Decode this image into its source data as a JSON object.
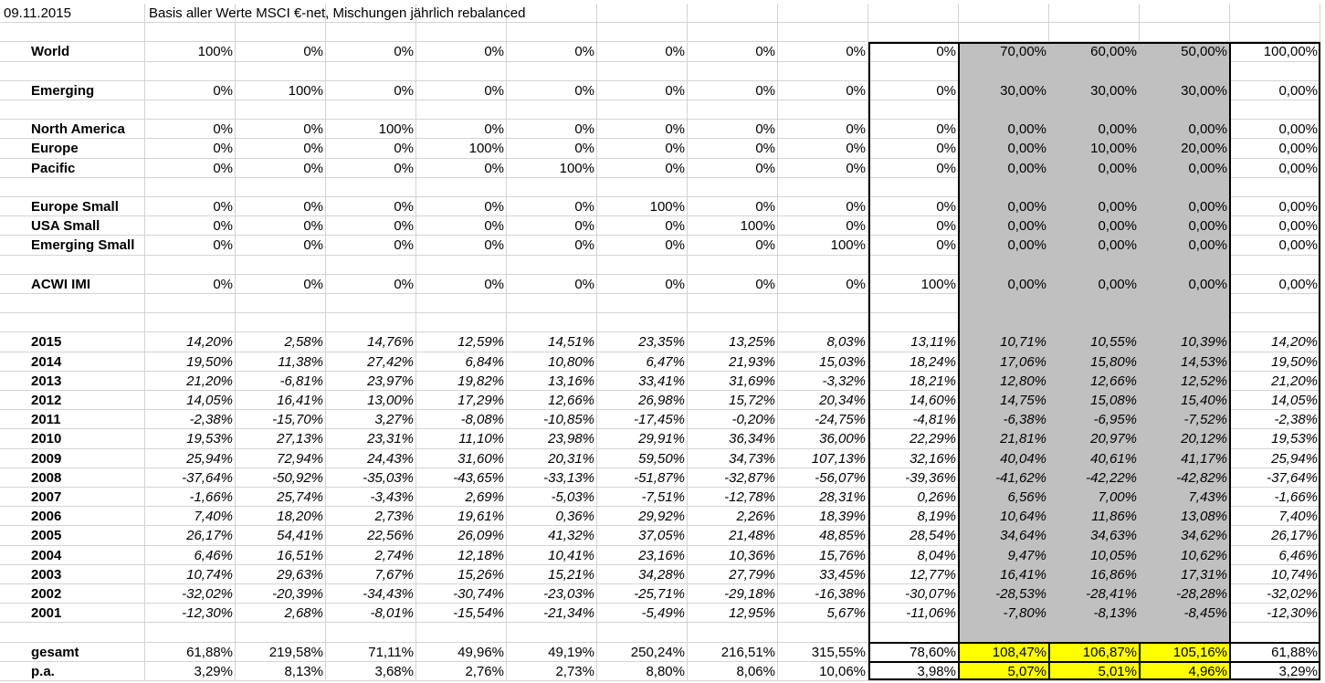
{
  "header": {
    "date": "09.11.2015",
    "note": "Basis aller Werte MSCI €-net, Mischungen jährlich rebalanced"
  },
  "groups": [
    [
      {
        "label": "World",
        "values": [
          "100%",
          "0%",
          "0%",
          "0%",
          "0%",
          "0%",
          "0%",
          "0%",
          "0%",
          "70,00%",
          "60,00%",
          "50,00%",
          "100,00%"
        ]
      }
    ],
    [
      {
        "label": "Emerging",
        "values": [
          "0%",
          "100%",
          "0%",
          "0%",
          "0%",
          "0%",
          "0%",
          "0%",
          "0%",
          "30,00%",
          "30,00%",
          "30,00%",
          "0,00%"
        ]
      }
    ],
    [
      {
        "label": "North America",
        "values": [
          "0%",
          "0%",
          "100%",
          "0%",
          "0%",
          "0%",
          "0%",
          "0%",
          "0%",
          "0,00%",
          "0,00%",
          "0,00%",
          "0,00%"
        ]
      },
      {
        "label": "Europe",
        "values": [
          "0%",
          "0%",
          "0%",
          "100%",
          "0%",
          "0%",
          "0%",
          "0%",
          "0%",
          "0,00%",
          "10,00%",
          "20,00%",
          "0,00%"
        ]
      },
      {
        "label": "Pacific",
        "values": [
          "0%",
          "0%",
          "0%",
          "0%",
          "100%",
          "0%",
          "0%",
          "0%",
          "0%",
          "0,00%",
          "0,00%",
          "0,00%",
          "0,00%"
        ]
      }
    ],
    [
      {
        "label": "Europe Small",
        "values": [
          "0%",
          "0%",
          "0%",
          "0%",
          "0%",
          "100%",
          "0%",
          "0%",
          "0%",
          "0,00%",
          "0,00%",
          "0,00%",
          "0,00%"
        ]
      },
      {
        "label": "USA Small",
        "values": [
          "0%",
          "0%",
          "0%",
          "0%",
          "0%",
          "0%",
          "100%",
          "0%",
          "0%",
          "0,00%",
          "0,00%",
          "0,00%",
          "0,00%"
        ]
      },
      {
        "label": "Emerging Small",
        "values": [
          "0%",
          "0%",
          "0%",
          "0%",
          "0%",
          "0%",
          "0%",
          "100%",
          "0%",
          "0,00%",
          "0,00%",
          "0,00%",
          "0,00%"
        ]
      }
    ],
    [
      {
        "label": "ACWI IMI",
        "values": [
          "0%",
          "0%",
          "0%",
          "0%",
          "0%",
          "0%",
          "0%",
          "0%",
          "100%",
          "0,00%",
          "0,00%",
          "0,00%",
          "0,00%"
        ]
      }
    ],
    [
      {
        "label": "2015",
        "values": [
          "14,20%",
          "2,58%",
          "14,76%",
          "12,59%",
          "14,51%",
          "23,35%",
          "13,25%",
          "8,03%",
          "13,11%",
          "10,71%",
          "10,55%",
          "10,39%",
          "14,20%"
        ]
      },
      {
        "label": "2014",
        "values": [
          "19,50%",
          "11,38%",
          "27,42%",
          "6,84%",
          "10,80%",
          "6,47%",
          "21,93%",
          "15,03%",
          "18,24%",
          "17,06%",
          "15,80%",
          "14,53%",
          "19,50%"
        ]
      },
      {
        "label": "2013",
        "values": [
          "21,20%",
          "-6,81%",
          "23,97%",
          "19,82%",
          "13,16%",
          "33,41%",
          "31,69%",
          "-3,32%",
          "18,21%",
          "12,80%",
          "12,66%",
          "12,52%",
          "21,20%"
        ]
      },
      {
        "label": "2012",
        "values": [
          "14,05%",
          "16,41%",
          "13,00%",
          "17,29%",
          "12,66%",
          "26,98%",
          "15,72%",
          "20,34%",
          "14,60%",
          "14,75%",
          "15,08%",
          "15,40%",
          "14,05%"
        ]
      },
      {
        "label": "2011",
        "values": [
          "-2,38%",
          "-15,70%",
          "3,27%",
          "-8,08%",
          "-10,85%",
          "-17,45%",
          "-0,20%",
          "-24,75%",
          "-4,81%",
          "-6,38%",
          "-6,95%",
          "-7,52%",
          "-2,38%"
        ]
      },
      {
        "label": "2010",
        "values": [
          "19,53%",
          "27,13%",
          "23,31%",
          "11,10%",
          "23,98%",
          "29,91%",
          "36,34%",
          "36,00%",
          "22,29%",
          "21,81%",
          "20,97%",
          "20,12%",
          "19,53%"
        ]
      },
      {
        "label": "2009",
        "values": [
          "25,94%",
          "72,94%",
          "24,43%",
          "31,60%",
          "20,31%",
          "59,50%",
          "34,73%",
          "107,13%",
          "32,16%",
          "40,04%",
          "40,61%",
          "41,17%",
          "25,94%"
        ]
      },
      {
        "label": "2008",
        "values": [
          "-37,64%",
          "-50,92%",
          "-35,03%",
          "-43,65%",
          "-33,13%",
          "-51,87%",
          "-32,87%",
          "-56,07%",
          "-39,36%",
          "-41,62%",
          "-42,22%",
          "-42,82%",
          "-37,64%"
        ]
      },
      {
        "label": "2007",
        "values": [
          "-1,66%",
          "25,74%",
          "-3,43%",
          "2,69%",
          "-5,03%",
          "-7,51%",
          "-12,78%",
          "28,31%",
          "0,26%",
          "6,56%",
          "7,00%",
          "7,43%",
          "-1,66%"
        ]
      },
      {
        "label": "2006",
        "values": [
          "7,40%",
          "18,20%",
          "2,73%",
          "19,61%",
          "0,36%",
          "29,92%",
          "2,26%",
          "18,39%",
          "8,19%",
          "10,64%",
          "11,86%",
          "13,08%",
          "7,40%"
        ]
      },
      {
        "label": "2005",
        "values": [
          "26,17%",
          "54,41%",
          "22,56%",
          "26,09%",
          "41,32%",
          "37,05%",
          "21,48%",
          "48,85%",
          "28,54%",
          "34,64%",
          "34,63%",
          "34,62%",
          "26,17%"
        ]
      },
      {
        "label": "2004",
        "values": [
          "6,46%",
          "16,51%",
          "2,74%",
          "12,18%",
          "10,41%",
          "23,16%",
          "10,36%",
          "15,76%",
          "8,04%",
          "9,47%",
          "10,05%",
          "10,62%",
          "6,46%"
        ]
      },
      {
        "label": "2003",
        "values": [
          "10,74%",
          "29,63%",
          "7,67%",
          "15,26%",
          "15,21%",
          "34,28%",
          "27,79%",
          "33,45%",
          "12,77%",
          "16,41%",
          "16,86%",
          "17,31%",
          "10,74%"
        ]
      },
      {
        "label": "2002",
        "values": [
          "-32,02%",
          "-20,39%",
          "-34,43%",
          "-30,74%",
          "-23,03%",
          "-25,71%",
          "-29,18%",
          "-16,38%",
          "-30,07%",
          "-28,53%",
          "-28,41%",
          "-28,28%",
          "-32,02%"
        ]
      },
      {
        "label": "2001",
        "values": [
          "-12,30%",
          "2,68%",
          "-8,01%",
          "-15,54%",
          "-21,34%",
          "-5,49%",
          "12,95%",
          "5,67%",
          "-11,06%",
          "-7,80%",
          "-8,13%",
          "-8,45%",
          "-12,30%"
        ]
      }
    ],
    [
      {
        "label": "gesamt",
        "values": [
          "61,88%",
          "219,58%",
          "71,11%",
          "49,96%",
          "49,19%",
          "250,24%",
          "216,51%",
          "315,55%",
          "78,60%",
          "108,47%",
          "106,87%",
          "105,16%",
          "61,88%"
        ]
      },
      {
        "label": "p.a.",
        "values": [
          "3,29%",
          "8,13%",
          "3,68%",
          "2,76%",
          "2,73%",
          "8,80%",
          "8,06%",
          "10,06%",
          "3,98%",
          "5,07%",
          "5,01%",
          "4,96%",
          "3,29%"
        ]
      }
    ]
  ]
}
